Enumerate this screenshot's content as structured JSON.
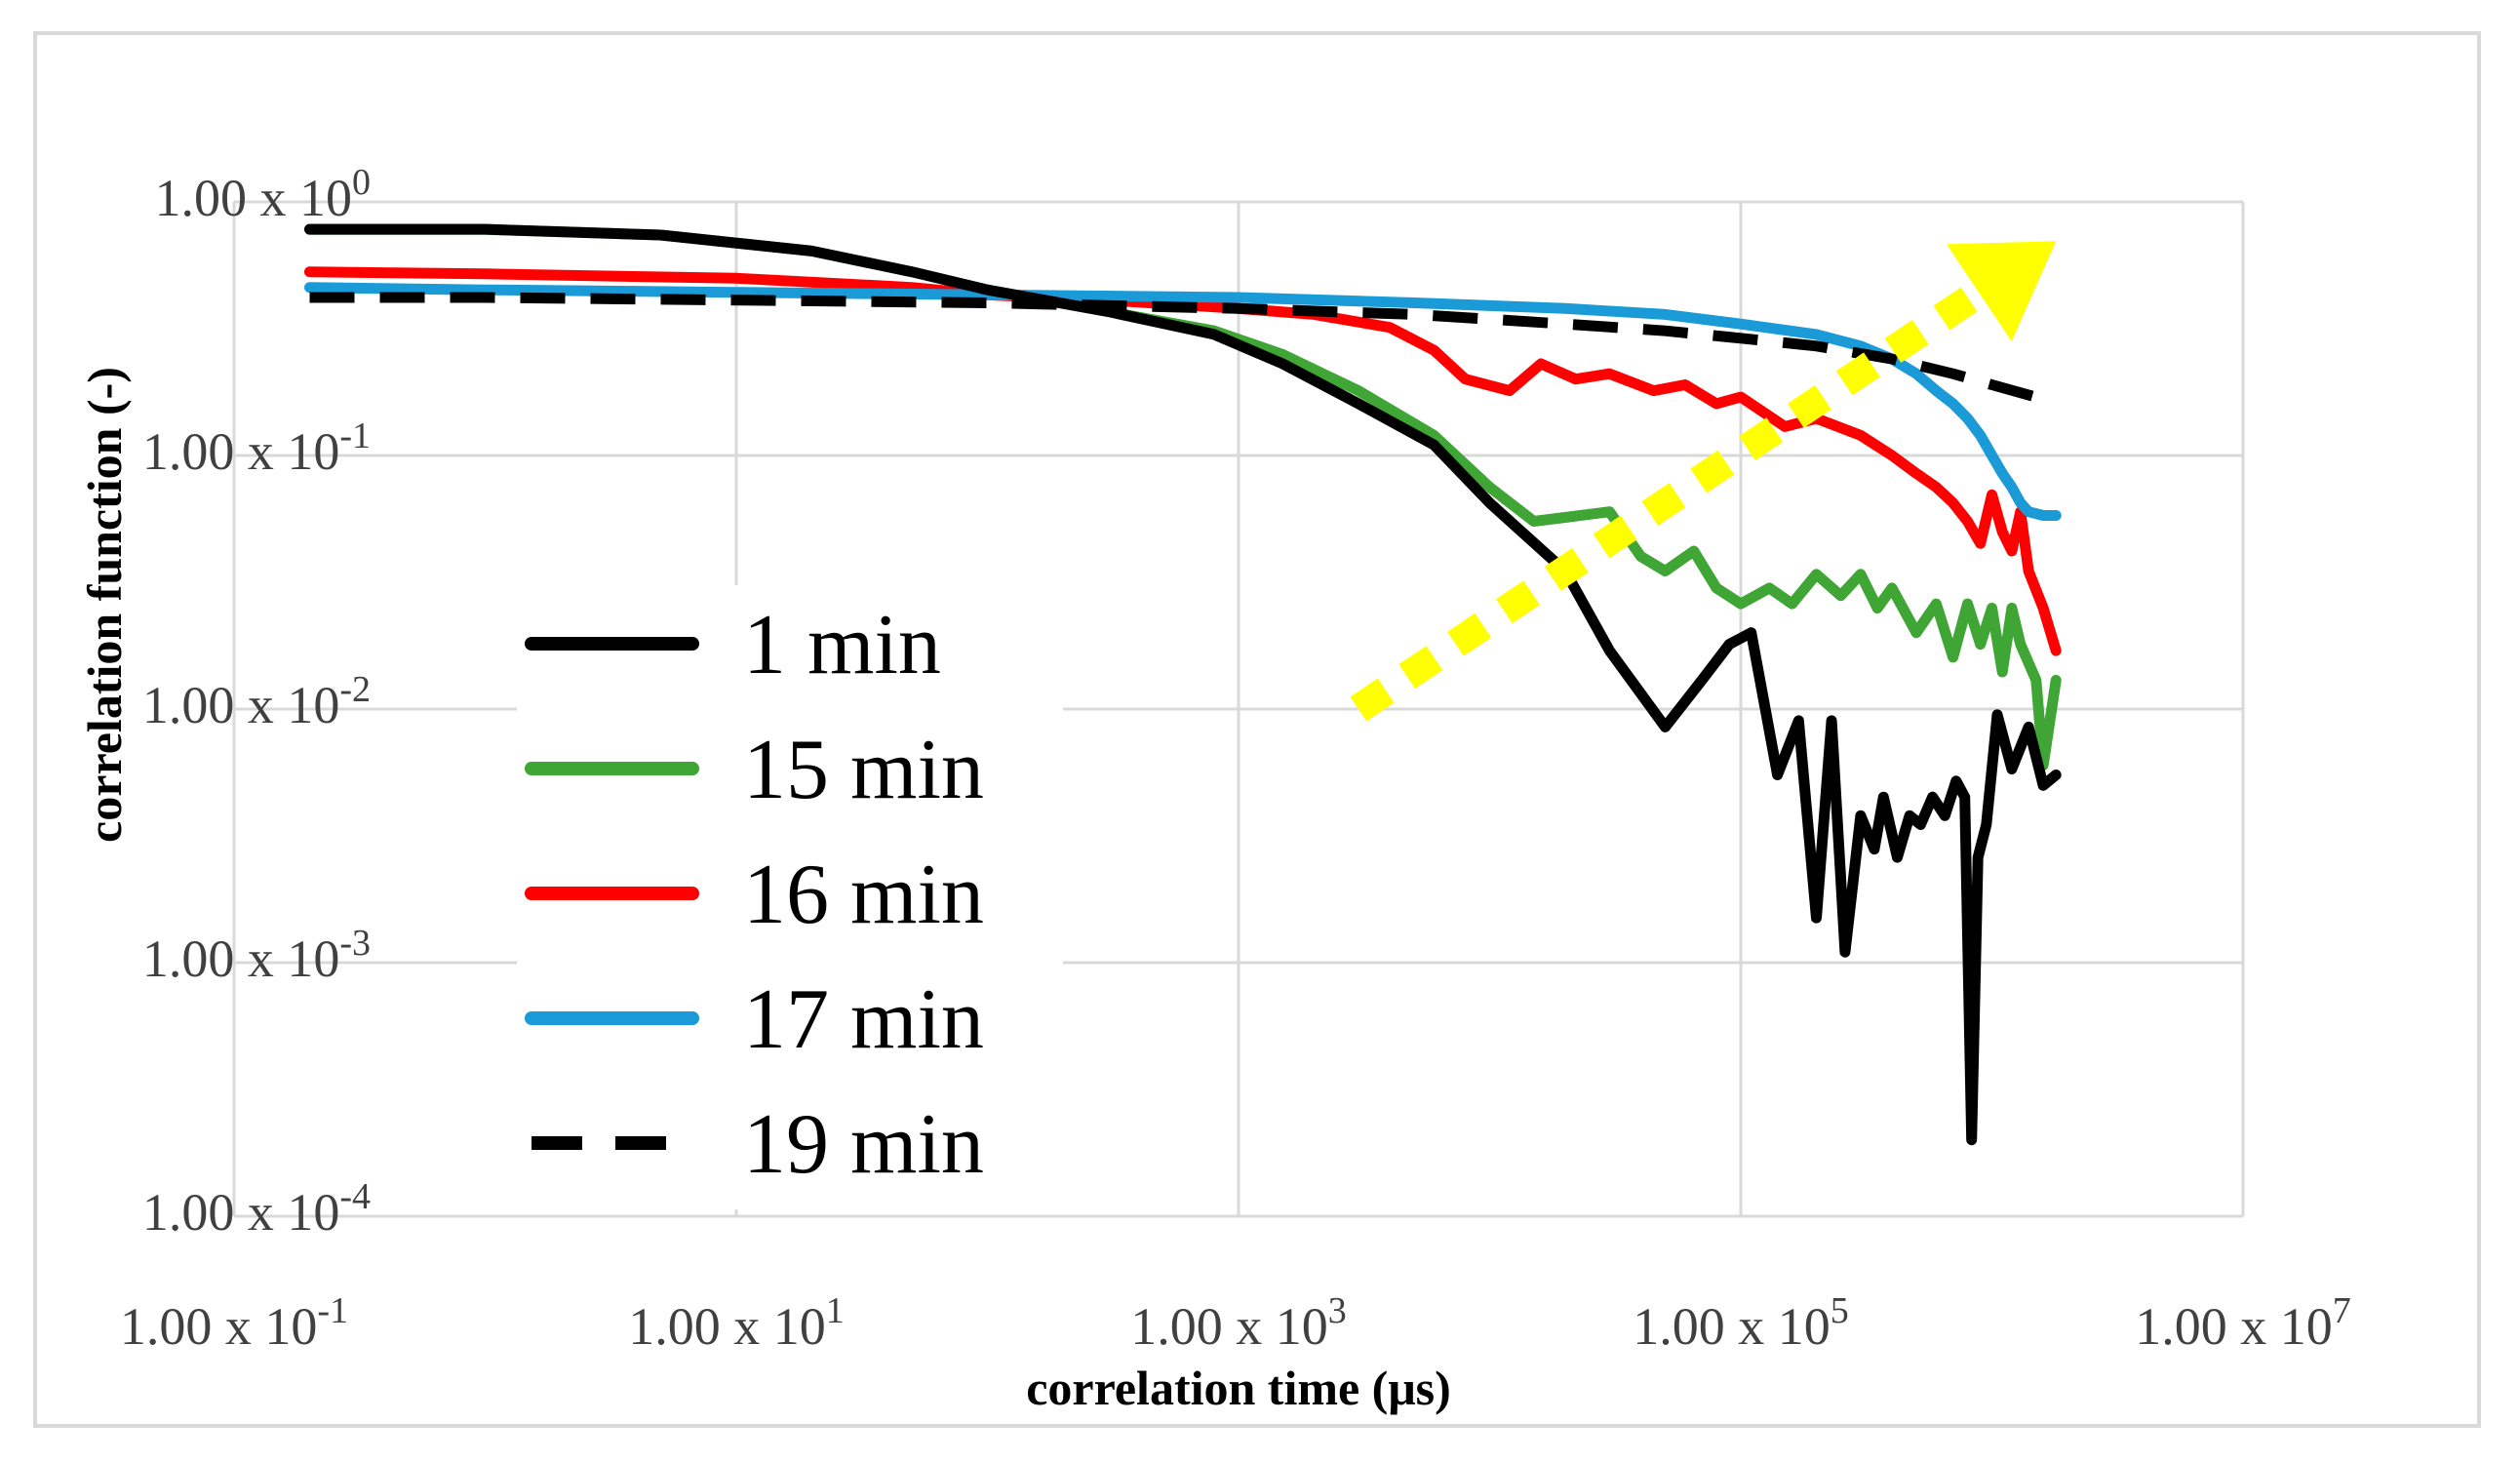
{
  "chart_data": {
    "type": "line",
    "title": "",
    "xlabel": "correlation time (μs)",
    "ylabel": "correlation function (-)",
    "x_scale": "log",
    "y_scale": "log",
    "xlim": [
      0.1,
      10000000
    ],
    "ylim": [
      0.0001,
      1
    ],
    "grid": true,
    "legend_position": "left",
    "x_ticks": [
      {
        "value": 0.1,
        "mantissa": "1.00 x 10",
        "exponent": "-1"
      },
      {
        "value": 10,
        "mantissa": "1.00 x 10",
        "exponent": "1"
      },
      {
        "value": 1000,
        "mantissa": "1.00 x 10",
        "exponent": "3"
      },
      {
        "value": 100000,
        "mantissa": "1.00 x 10",
        "exponent": "5"
      },
      {
        "value": 10000000,
        "mantissa": "1.00 x 10",
        "exponent": "7"
      }
    ],
    "y_ticks": [
      {
        "value": 1,
        "mantissa": "1.00 x 10",
        "exponent": "0"
      },
      {
        "value": 0.1,
        "mantissa": "1.00 x 10",
        "exponent": "-1"
      },
      {
        "value": 0.01,
        "mantissa": "1.00 x 10",
        "exponent": "-2"
      },
      {
        "value": 0.001,
        "mantissa": "1.00 x 10",
        "exponent": "-3"
      },
      {
        "value": 0.0001,
        "mantissa": "1.00 x 10",
        "exponent": "-4"
      }
    ],
    "annotation": {
      "type": "dotted-arrow",
      "color": "#ffff00",
      "from": [
        3000,
        0.01
      ],
      "to": [
        1800000,
        0.7
      ]
    },
    "series": [
      {
        "name": "1 min",
        "color": "#000000",
        "dashed": false,
        "x": [
          0.2,
          1,
          5,
          20,
          50,
          100,
          300,
          800,
          1500,
          3000,
          6000,
          10000,
          20000,
          30000,
          50000,
          70000,
          90000,
          110000,
          140000,
          170000,
          200000,
          230000,
          260000,
          300000,
          340000,
          370000,
          420000,
          470000,
          520000,
          580000,
          650000,
          720000,
          780000,
          830000,
          880000,
          950000,
          1050000,
          1200000,
          1400000,
          1600000,
          1800000
        ],
        "y": [
          0.78,
          0.78,
          0.74,
          0.64,
          0.53,
          0.45,
          0.37,
          0.3,
          0.23,
          0.16,
          0.11,
          0.065,
          0.035,
          0.017,
          0.0085,
          0.013,
          0.018,
          0.02,
          0.0055,
          0.009,
          0.0015,
          0.009,
          0.0011,
          0.0038,
          0.0028,
          0.0045,
          0.0026,
          0.0038,
          0.0035,
          0.0045,
          0.0038,
          0.0052,
          0.0045,
          0.0002,
          0.0026,
          0.0035,
          0.0095,
          0.0058,
          0.0085,
          0.005,
          0.0055
        ]
      },
      {
        "name": "15 min",
        "color": "#3fa535",
        "dashed": false,
        "x": [
          0.2,
          1,
          5,
          20,
          50,
          100,
          300,
          800,
          1500,
          3000,
          6000,
          10000,
          15000,
          20000,
          30000,
          40000,
          50000,
          65000,
          80000,
          100000,
          130000,
          160000,
          200000,
          250000,
          300000,
          350000,
          400000,
          500000,
          600000,
          700000,
          800000,
          900000,
          1000000,
          1100000,
          1200000,
          1300000,
          1500000,
          1600000,
          1800000
        ],
        "y": [
          0.78,
          0.78,
          0.74,
          0.64,
          0.53,
          0.45,
          0.37,
          0.31,
          0.25,
          0.18,
          0.12,
          0.075,
          0.055,
          0.057,
          0.06,
          0.04,
          0.035,
          0.042,
          0.03,
          0.026,
          0.03,
          0.026,
          0.034,
          0.028,
          0.034,
          0.025,
          0.03,
          0.02,
          0.026,
          0.016,
          0.026,
          0.018,
          0.025,
          0.014,
          0.025,
          0.018,
          0.013,
          0.006,
          0.013
        ]
      },
      {
        "name": "16 min",
        "color": "#ff0000",
        "dashed": false,
        "x": [
          0.2,
          1,
          10,
          50,
          100,
          300,
          1000,
          2000,
          4000,
          6000,
          8000,
          12000,
          16000,
          22000,
          30000,
          45000,
          60000,
          80000,
          100000,
          150000,
          200000,
          300000,
          400000,
          500000,
          600000,
          700000,
          800000,
          900000,
          1000000,
          1100000,
          1200000,
          1300000,
          1400000,
          1600000,
          1800000
        ],
        "y": [
          0.53,
          0.52,
          0.5,
          0.46,
          0.43,
          0.41,
          0.38,
          0.36,
          0.32,
          0.26,
          0.2,
          0.18,
          0.23,
          0.2,
          0.21,
          0.18,
          0.19,
          0.16,
          0.17,
          0.13,
          0.14,
          0.12,
          0.1,
          0.085,
          0.075,
          0.065,
          0.055,
          0.045,
          0.07,
          0.05,
          0.042,
          0.06,
          0.035,
          0.025,
          0.017
        ]
      },
      {
        "name": "17 min",
        "color": "#1a9ad6",
        "dashed": false,
        "x": [
          0.2,
          1,
          10,
          100,
          1000,
          5000,
          20000,
          50000,
          100000,
          200000,
          300000,
          400000,
          500000,
          600000,
          700000,
          800000,
          900000,
          1000000,
          1100000,
          1200000,
          1300000,
          1400000,
          1600000,
          1800000
        ],
        "y": [
          0.46,
          0.45,
          0.44,
          0.43,
          0.42,
          0.4,
          0.38,
          0.36,
          0.33,
          0.3,
          0.27,
          0.24,
          0.21,
          0.18,
          0.16,
          0.14,
          0.12,
          0.1,
          0.085,
          0.075,
          0.065,
          0.06,
          0.058,
          0.058
        ]
      },
      {
        "name": "19 min",
        "color": "#000000",
        "dashed": true,
        "x": [
          0.2,
          1,
          10,
          100,
          1000,
          5000,
          20000,
          50000,
          100000,
          200000,
          400000,
          700000,
          1000000,
          1500000,
          1800000
        ],
        "y": [
          0.42,
          0.42,
          0.41,
          0.4,
          0.38,
          0.36,
          0.33,
          0.31,
          0.29,
          0.27,
          0.24,
          0.21,
          0.19,
          0.17,
          0.16
        ]
      }
    ]
  }
}
